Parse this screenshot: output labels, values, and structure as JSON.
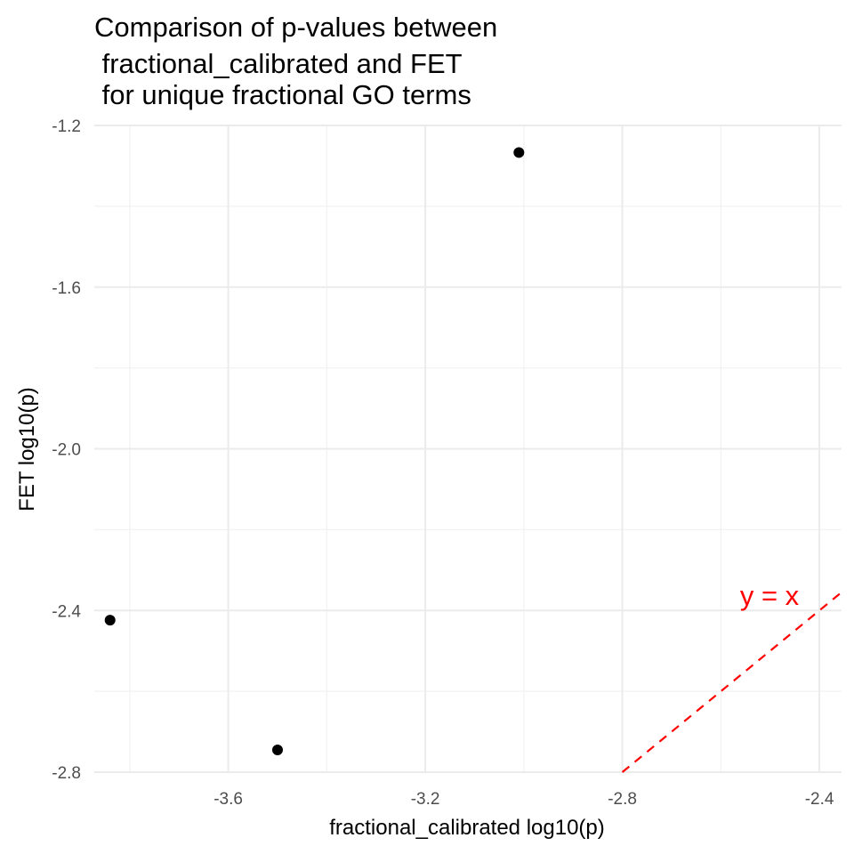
{
  "chart_data": {
    "type": "scatter",
    "title": [
      "Comparison of p-values between",
      " fractional_calibrated and FET",
      " for unique fractional GO terms"
    ],
    "xlabel": "fractional_calibrated log10(p)",
    "ylabel": "FET log10(p)",
    "xlim": [
      -3.872,
      -2.355
    ],
    "ylim": [
      -2.8,
      -1.2
    ],
    "x_ticks": [
      -3.6,
      -3.2,
      -2.8,
      -2.4
    ],
    "x_tick_labels": [
      "-3.6",
      "-3.2",
      "-2.8",
      "-2.4"
    ],
    "y_ticks": [
      -2.8,
      -2.4,
      -2.0,
      -1.6,
      -1.2
    ],
    "y_tick_labels": [
      "-2.8",
      "-2.4",
      "-2.0",
      "-1.6",
      "-1.2"
    ],
    "grid": true,
    "points": [
      {
        "x": -3.01,
        "y": -1.267
      },
      {
        "x": -3.84,
        "y": -2.424
      },
      {
        "x": -3.5,
        "y": -2.745
      }
    ],
    "reference_line": {
      "label": "y = x",
      "color": "#ff0000",
      "style": "dashed",
      "slope": 1,
      "intercept": 0
    },
    "point_color": "#000000"
  }
}
